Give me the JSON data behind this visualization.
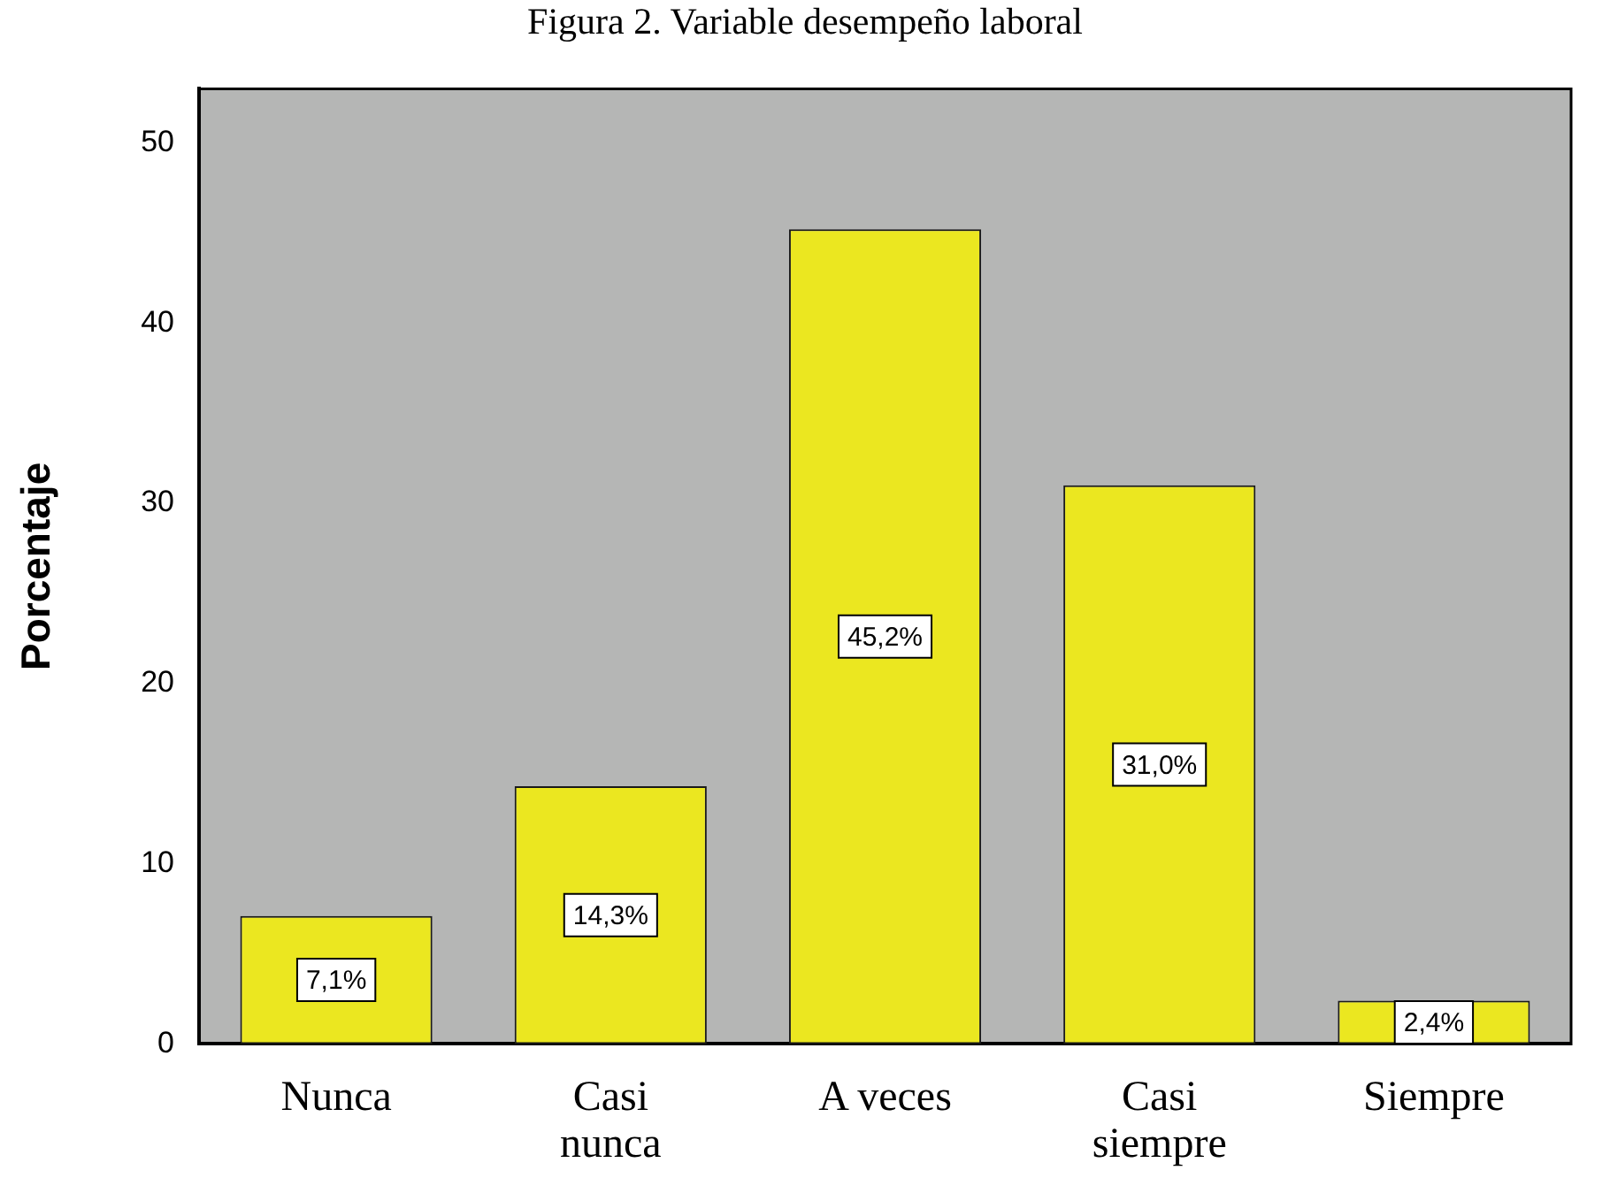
{
  "chart_data": {
    "type": "bar",
    "title": "Figura 2. Variable desempeño laboral",
    "ylabel": "Porcentaje",
    "categories": [
      "Nunca",
      "Casi nunca",
      "A veces",
      "Casi siempre",
      "Siempre"
    ],
    "values": [
      7.1,
      14.3,
      45.2,
      31.0,
      2.4
    ],
    "color": "#ebe720",
    "value_labels": [
      "7,1%",
      "14,3%",
      "45,2%",
      "31,0%",
      "2,4%"
    ],
    "ylim": [
      0,
      53
    ],
    "yticks": [
      0,
      10,
      20,
      30,
      40,
      50
    ]
  }
}
